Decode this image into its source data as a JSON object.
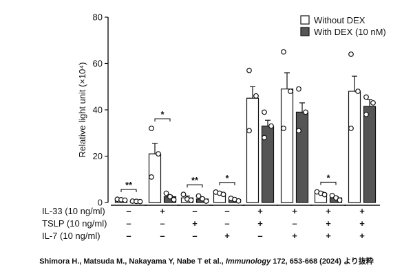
{
  "chart_data": {
    "type": "bar",
    "ylabel": "Relative light unit (×10⁴)",
    "ylim": [
      0,
      80
    ],
    "yticks": [
      0,
      20,
      40,
      60,
      80
    ],
    "legend": {
      "placement": "top-right",
      "entries": [
        "Without DEX",
        "With DEX (10 nM)"
      ]
    },
    "series": [
      {
        "name": "Without DEX",
        "values": [
          1.2,
          21,
          2,
          4,
          45,
          49,
          4,
          48
        ],
        "errors": [
          0.3,
          4.5,
          0.8,
          0.5,
          5,
          7,
          0.6,
          6.5
        ]
      },
      {
        "name": "With DEX (10 nM)",
        "values": [
          0.5,
          2.5,
          1.5,
          1.3,
          33,
          39,
          2,
          41.5
        ],
        "errors": [
          0.2,
          0.6,
          0.5,
          0.3,
          2.5,
          4,
          0.5,
          3
        ]
      }
    ],
    "points_without_dex": [
      [
        1.4,
        1.2,
        1.0
      ],
      [
        32,
        21,
        11
      ],
      [
        3.5,
        1.5,
        1.0
      ],
      [
        4.5,
        4.0,
        3.5
      ],
      [
        57,
        46,
        31
      ],
      [
        65,
        48,
        32
      ],
      [
        4.6,
        4.0,
        3.4
      ],
      [
        64,
        48,
        32
      ]
    ],
    "points_with_dex": [
      [
        0.6,
        0.5,
        0.4
      ],
      [
        4,
        2.5,
        1.2
      ],
      [
        2.8,
        1.6,
        0.6
      ],
      [
        1.8,
        1.3,
        0.7
      ],
      [
        39,
        33,
        28
      ],
      [
        49,
        39,
        31
      ],
      [
        3.0,
        2.0,
        1.0
      ],
      [
        45.5,
        43,
        38
      ]
    ],
    "significance": [
      "**",
      "*",
      "**",
      "*",
      "",
      "",
      "*",
      ""
    ],
    "conditions": [
      {
        "label": "IL-33 (10 ng/ml)",
        "values": [
          "–",
          "+",
          "–",
          "–",
          "+",
          "+",
          "+",
          "+"
        ]
      },
      {
        "label": "TSLP (10 ng/ml)",
        "values": [
          "–",
          "–",
          "+",
          "–",
          "+",
          "–",
          "+",
          "+"
        ]
      },
      {
        "label": "IL-7 (10 ng/ml)",
        "values": [
          "–",
          "–",
          "–",
          "+",
          "–",
          "+",
          "+",
          "+"
        ]
      }
    ],
    "colors": {
      "without_dex": "#ffffff",
      "with_dex": "#555555",
      "stroke": "#111111"
    }
  },
  "caption": {
    "before": "Shimora H., Matsuda M., Nakayama Y, Nabe T et al., ",
    "journal": "Immunology",
    "after": " 172, 653-668 (2024) より抜粋"
  }
}
